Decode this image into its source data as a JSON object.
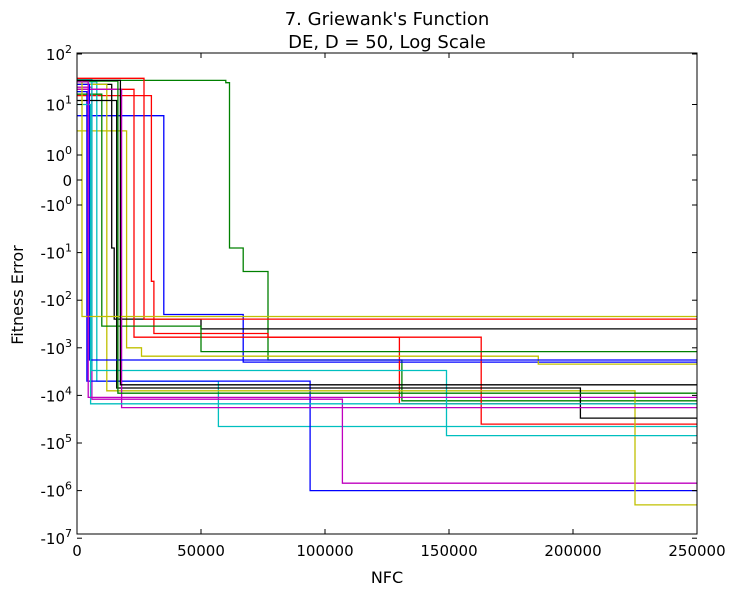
{
  "chart_data": {
    "type": "line",
    "title_line1": "7.   Griewank's Function",
    "title_line2": "DE, D = 50, Log Scale",
    "xlabel": "NFC",
    "ylabel": "Fitness Error",
    "xlim": [
      0,
      250000
    ],
    "ylim_description": "symmetric log scale from -10^7 to 10^2",
    "x_ticks": [
      {
        "value": 0,
        "label": "0"
      },
      {
        "value": 50000,
        "label": "50000"
      },
      {
        "value": 100000,
        "label": "100000"
      },
      {
        "value": 150000,
        "label": "150000"
      },
      {
        "value": 200000,
        "label": "200000"
      },
      {
        "value": 250000,
        "label": "250000"
      }
    ],
    "y_ticks": [
      {
        "value": 100,
        "base": "10",
        "exp": "2",
        "sign": ""
      },
      {
        "value": 10,
        "base": "10",
        "exp": "1",
        "sign": ""
      },
      {
        "value": 1,
        "base": "10",
        "exp": "0",
        "sign": ""
      },
      {
        "value": 0,
        "label": "0"
      },
      {
        "value": -1,
        "base": "10",
        "exp": "0",
        "sign": "-"
      },
      {
        "value": -10,
        "base": "10",
        "exp": "1",
        "sign": "-"
      },
      {
        "value": -100,
        "base": "10",
        "exp": "2",
        "sign": "-"
      },
      {
        "value": -1000,
        "base": "10",
        "exp": "3",
        "sign": "-"
      },
      {
        "value": -10000,
        "base": "10",
        "exp": "4",
        "sign": "-"
      },
      {
        "value": -100000,
        "base": "10",
        "exp": "5",
        "sign": "-"
      },
      {
        "value": -1000000,
        "base": "10",
        "exp": "6",
        "sign": "-"
      },
      {
        "value": -10000000,
        "base": "10",
        "exp": "7",
        "sign": "-"
      }
    ],
    "grid": false,
    "legend": "none",
    "series": [
      {
        "color": "#008000",
        "points": [
          [
            0,
            30
          ],
          [
            60000,
            30
          ],
          [
            60000,
            27
          ],
          [
            61500,
            27
          ],
          [
            61500,
            -8
          ],
          [
            67000,
            -8
          ],
          [
            67000,
            -25
          ],
          [
            77000,
            -25
          ],
          [
            77000,
            -1800
          ],
          [
            131000,
            -1800
          ],
          [
            131000,
            -13000
          ],
          [
            250000,
            -13000
          ]
        ]
      },
      {
        "color": "#0000ff",
        "points": [
          [
            0,
            6
          ],
          [
            35000,
            6
          ],
          [
            35000,
            -200
          ],
          [
            67000,
            -200
          ],
          [
            67000,
            -2000
          ],
          [
            250000,
            -2000
          ]
        ]
      },
      {
        "color": "#ff0000",
        "points": [
          [
            0,
            15
          ],
          [
            30000,
            15
          ],
          [
            30000,
            -40
          ],
          [
            31000,
            -40
          ],
          [
            31000,
            -500
          ],
          [
            77000,
            -500
          ],
          [
            77000,
            -600
          ],
          [
            130000,
            -600
          ],
          [
            130000,
            -15000
          ],
          [
            250000,
            -15000
          ]
        ]
      },
      {
        "color": "#c0c000",
        "points": [
          [
            0,
            3
          ],
          [
            20000,
            3
          ],
          [
            20000,
            -1000
          ],
          [
            26000,
            -1000
          ],
          [
            26000,
            -1500
          ],
          [
            186000,
            -1500
          ],
          [
            186000,
            -2200
          ],
          [
            250000,
            -2200
          ]
        ]
      },
      {
        "color": "#000000",
        "points": [
          [
            0,
            25
          ],
          [
            14000,
            25
          ],
          [
            14000,
            -8
          ],
          [
            15000,
            -8
          ],
          [
            15000,
            -250
          ],
          [
            50000,
            -250
          ],
          [
            50000,
            -400
          ],
          [
            250000,
            -400
          ]
        ]
      },
      {
        "color": "#00bfbf",
        "points": [
          [
            0,
            28
          ],
          [
            8000,
            28
          ],
          [
            8000,
            -5000
          ],
          [
            57000,
            -5000
          ],
          [
            57000,
            -45000
          ],
          [
            250000,
            -45000
          ]
        ]
      },
      {
        "color": "#bf00bf",
        "points": [
          [
            0,
            22
          ],
          [
            6000,
            22
          ],
          [
            6000,
            -12000
          ],
          [
            107000,
            -12000
          ],
          [
            107000,
            -700000
          ],
          [
            250000,
            -700000
          ]
        ]
      },
      {
        "color": "#ff0000",
        "points": [
          [
            0,
            20
          ],
          [
            23000,
            20
          ],
          [
            23000,
            -600
          ],
          [
            163000,
            -600
          ],
          [
            163000,
            -40000
          ],
          [
            250000,
            -40000
          ]
        ]
      },
      {
        "color": "#0000ff",
        "points": [
          [
            0,
            18
          ],
          [
            4000,
            18
          ],
          [
            4000,
            -5000
          ],
          [
            94000,
            -5000
          ],
          [
            94000,
            -1000000
          ],
          [
            250000,
            -1000000
          ]
        ]
      },
      {
        "color": "#c0c000",
        "points": [
          [
            0,
            25
          ],
          [
            12000,
            25
          ],
          [
            12000,
            -8000
          ],
          [
            225000,
            -8000
          ],
          [
            225000,
            -2000000
          ],
          [
            250000,
            -2000000
          ]
        ]
      },
      {
        "color": "#008000",
        "points": [
          [
            0,
            16
          ],
          [
            10000,
            16
          ],
          [
            10000,
            -350
          ],
          [
            50000,
            -350
          ],
          [
            50000,
            -1200
          ],
          [
            250000,
            -1200
          ]
        ]
      },
      {
        "color": "#00bfbf",
        "points": [
          [
            0,
            32
          ],
          [
            6000,
            32
          ],
          [
            6000,
            -3000
          ],
          [
            149000,
            -3000
          ],
          [
            149000,
            -70000
          ],
          [
            250000,
            -70000
          ]
        ]
      },
      {
        "color": "#000000",
        "points": [
          [
            0,
            12
          ],
          [
            16000,
            12
          ],
          [
            16000,
            -7000
          ],
          [
            203000,
            -7000
          ],
          [
            203000,
            -30000
          ],
          [
            250000,
            -30000
          ]
        ]
      },
      {
        "color": "#bf00bf",
        "points": [
          [
            0,
            20
          ],
          [
            18000,
            20
          ],
          [
            18000,
            -18000
          ],
          [
            250000,
            -18000
          ]
        ]
      },
      {
        "color": "#ff0000",
        "points": [
          [
            0,
            33
          ],
          [
            27000,
            33
          ],
          [
            27000,
            -250
          ],
          [
            250000,
            -250
          ]
        ]
      },
      {
        "color": "#0000ff",
        "points": [
          [
            0,
            25
          ],
          [
            5000,
            25
          ],
          [
            5000,
            -1800
          ],
          [
            250000,
            -1800
          ]
        ]
      },
      {
        "color": "#008000",
        "points": [
          [
            0,
            29
          ],
          [
            16500,
            29
          ],
          [
            16500,
            -9000
          ],
          [
            250000,
            -9000
          ]
        ]
      },
      {
        "color": "#00bfbf",
        "points": [
          [
            0,
            10
          ],
          [
            5500,
            10
          ],
          [
            5500,
            -15000
          ],
          [
            250000,
            -15000
          ]
        ]
      },
      {
        "color": "#c0c000",
        "points": [
          [
            0,
            30
          ],
          [
            2000,
            30
          ],
          [
            2000,
            -220
          ],
          [
            250000,
            -220
          ]
        ]
      },
      {
        "color": "#000000",
        "points": [
          [
            0,
            30
          ],
          [
            17500,
            30
          ],
          [
            17500,
            -6000
          ],
          [
            250000,
            -6000
          ]
        ]
      },
      {
        "color": "#bf00bf",
        "points": [
          [
            0,
            28
          ],
          [
            4500,
            28
          ],
          [
            4500,
            -11000
          ],
          [
            250000,
            -11000
          ]
        ]
      }
    ]
  }
}
